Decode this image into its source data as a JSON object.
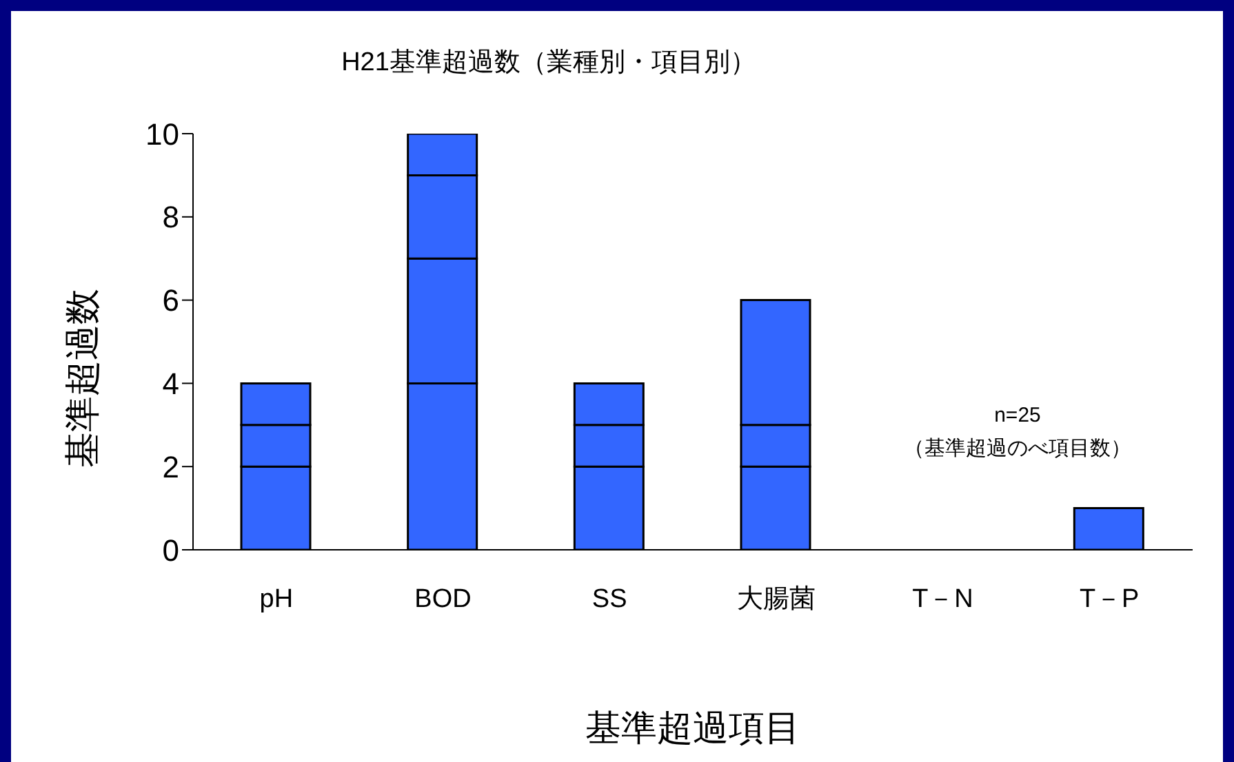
{
  "chart_data": {
    "type": "bar",
    "title": "H21基準超過数（業種別・項目別）",
    "xlabel": "基準超過項目",
    "ylabel": "基準超過数",
    "categories": [
      "pH",
      "BOD",
      "SS",
      "大腸菌",
      "T－N",
      "T－P"
    ],
    "stacked": true,
    "series": [
      {
        "color": "#3366ff",
        "values": [
          2,
          4,
          2,
          2,
          0,
          1
        ]
      },
      {
        "color": "#3366ff",
        "values": [
          1,
          3,
          1,
          1,
          null,
          null
        ]
      },
      {
        "color": "#3366ff",
        "values": [
          1,
          2,
          1,
          3,
          null,
          null
        ]
      },
      {
        "color": "#3366ff",
        "values": [
          null,
          1,
          null,
          null,
          null,
          null
        ]
      }
    ],
    "ylim": [
      0,
      10
    ],
    "yticks": [
      0,
      2,
      4,
      6,
      8,
      10
    ],
    "annotations": [
      "n=25",
      "（基準超過のべ項目数）"
    ]
  }
}
